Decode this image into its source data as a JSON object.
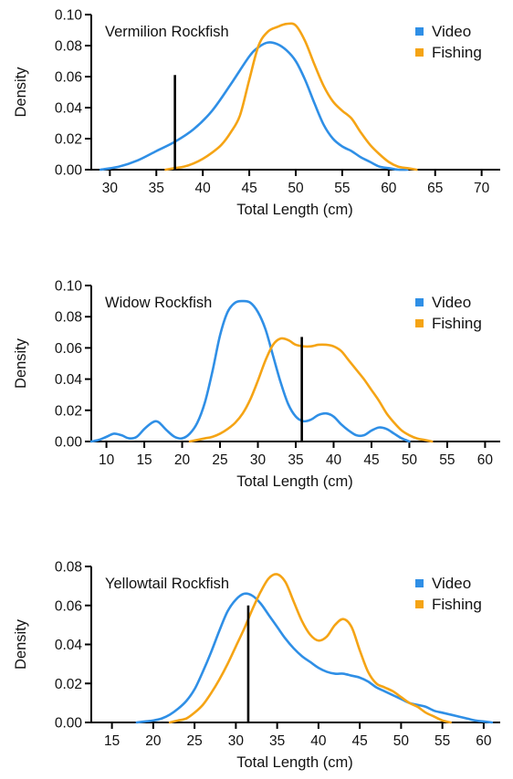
{
  "colors": {
    "video": "#2f8fe6",
    "fishing": "#f5a415",
    "marker": "#000000",
    "axis": "#000000"
  },
  "chart_data": [
    {
      "type": "line",
      "title": "Vermilion Rockfish",
      "xlabel": "Total Length (cm)",
      "ylabel": "Density",
      "xlim": [
        28,
        72
      ],
      "ylim": [
        0,
        0.1
      ],
      "xticks": [
        30,
        35,
        40,
        45,
        50,
        55,
        60,
        65,
        70
      ],
      "xtick_labels": [
        "30",
        "35",
        "40",
        "45",
        "50",
        "55",
        "60",
        "65",
        "70"
      ],
      "yticks": [
        0,
        0.02,
        0.04,
        0.06,
        0.08,
        0.1
      ],
      "ytick_labels": [
        "0.00",
        "0.02",
        "0.04",
        "0.06",
        "0.08",
        "0.10"
      ],
      "legend_position": "top-right",
      "marker_line": {
        "x": 37,
        "y": 0.061
      },
      "series": [
        {
          "name": "Video",
          "color": "#2f8fe6",
          "x": [
            29,
            31,
            33,
            35,
            37,
            39,
            41,
            43,
            45,
            46,
            47,
            48,
            49,
            50,
            51,
            52,
            53,
            54,
            55,
            56,
            57,
            58,
            59,
            60,
            61,
            62
          ],
          "y": [
            0,
            0.002,
            0.006,
            0.012,
            0.018,
            0.026,
            0.038,
            0.055,
            0.073,
            0.079,
            0.082,
            0.081,
            0.077,
            0.07,
            0.058,
            0.043,
            0.029,
            0.02,
            0.015,
            0.012,
            0.008,
            0.005,
            0.002,
            0.001,
            0,
            0
          ]
        },
        {
          "name": "Fishing",
          "color": "#f5a415",
          "x": [
            36,
            37,
            38,
            39,
            40,
            41,
            42,
            43,
            44,
            45,
            46,
            47,
            48,
            49,
            50,
            51,
            52,
            53,
            54,
            55,
            56,
            57,
            58,
            59,
            60,
            61,
            62,
            63
          ],
          "y": [
            0,
            0.001,
            0.002,
            0.004,
            0.007,
            0.011,
            0.016,
            0.024,
            0.035,
            0.058,
            0.08,
            0.089,
            0.092,
            0.094,
            0.093,
            0.083,
            0.068,
            0.054,
            0.044,
            0.038,
            0.033,
            0.024,
            0.016,
            0.01,
            0.005,
            0.002,
            0.001,
            0
          ]
        }
      ]
    },
    {
      "type": "line",
      "title": "Widow Rockfish",
      "xlabel": "Total Length (cm)",
      "ylabel": "Density",
      "xlim": [
        8,
        62
      ],
      "ylim": [
        0,
        0.1
      ],
      "xticks": [
        10,
        15,
        20,
        25,
        30,
        35,
        40,
        45,
        50,
        55,
        60
      ],
      "xtick_labels": [
        "10",
        "15",
        "20",
        "25",
        "30",
        "35",
        "40",
        "45",
        "50",
        "55",
        "60"
      ],
      "yticks": [
        0,
        0.02,
        0.04,
        0.06,
        0.08,
        0.1
      ],
      "ytick_labels": [
        "0.00",
        "0.02",
        "0.04",
        "0.06",
        "0.08",
        "0.10"
      ],
      "legend_position": "top-right",
      "marker_line": {
        "x": 35.8,
        "y": 0.067
      },
      "series": [
        {
          "name": "Video",
          "color": "#2f8fe6",
          "x": [
            8,
            9,
            10,
            11,
            12,
            13,
            14,
            15,
            16,
            16.5,
            17,
            18,
            19,
            20,
            21,
            22,
            23,
            24,
            25,
            26,
            27,
            28,
            29,
            30,
            31,
            32,
            33,
            34,
            35,
            36,
            37,
            38,
            39,
            40,
            41,
            42,
            43,
            44,
            45,
            46,
            47,
            48,
            49,
            50
          ],
          "y": [
            0,
            0.001,
            0.003,
            0.005,
            0.004,
            0.002,
            0.003,
            0.008,
            0.012,
            0.013,
            0.012,
            0.007,
            0.003,
            0.002,
            0.005,
            0.012,
            0.025,
            0.045,
            0.068,
            0.083,
            0.089,
            0.09,
            0.089,
            0.083,
            0.072,
            0.055,
            0.038,
            0.024,
            0.016,
            0.013,
            0.014,
            0.017,
            0.018,
            0.016,
            0.011,
            0.007,
            0.004,
            0.004,
            0.007,
            0.009,
            0.008,
            0.005,
            0.002,
            0
          ]
        },
        {
          "name": "Fishing",
          "color": "#f5a415",
          "x": [
            21,
            22,
            23,
            24,
            25,
            26,
            27,
            28,
            29,
            30,
            31,
            32,
            33,
            34,
            35,
            36,
            37,
            38,
            39,
            40,
            41,
            42,
            43,
            44,
            45,
            46,
            47,
            48,
            49,
            50,
            51,
            52,
            53
          ],
          "y": [
            0,
            0.001,
            0.002,
            0.003,
            0.005,
            0.008,
            0.012,
            0.018,
            0.027,
            0.039,
            0.052,
            0.062,
            0.066,
            0.065,
            0.062,
            0.061,
            0.061,
            0.062,
            0.062,
            0.061,
            0.058,
            0.052,
            0.046,
            0.04,
            0.033,
            0.026,
            0.018,
            0.012,
            0.007,
            0.004,
            0.002,
            0.001,
            0
          ]
        }
      ]
    },
    {
      "type": "line",
      "title": "Yellowtail Rockfish",
      "xlabel": "Total Length (cm)",
      "ylabel": "Density",
      "xlim": [
        12.5,
        62
      ],
      "ylim": [
        0,
        0.08
      ],
      "xticks": [
        15,
        20,
        25,
        30,
        35,
        40,
        45,
        50,
        55,
        60
      ],
      "xtick_labels": [
        "15",
        "20",
        "25",
        "30",
        "35",
        "40",
        "45",
        "50",
        "55",
        "60"
      ],
      "yticks": [
        0,
        0.02,
        0.04,
        0.06,
        0.08
      ],
      "ytick_labels": [
        "0.00",
        "0.02",
        "0.04",
        "0.06",
        "0.08"
      ],
      "legend_position": "top-right",
      "marker_line": {
        "x": 31.5,
        "y": 0.06
      },
      "series": [
        {
          "name": "Video",
          "color": "#2f8fe6",
          "x": [
            18,
            19,
            20,
            21,
            22,
            23,
            24,
            25,
            26,
            27,
            28,
            29,
            30,
            31,
            32,
            33,
            34,
            35,
            36,
            37,
            38,
            39,
            40,
            41,
            42,
            43,
            44,
            45,
            46,
            47,
            48,
            49,
            50,
            51,
            52,
            53,
            54,
            55,
            56,
            57,
            58,
            59,
            60,
            61
          ],
          "y": [
            0,
            0.0005,
            0.001,
            0.002,
            0.004,
            0.007,
            0.011,
            0.017,
            0.026,
            0.036,
            0.047,
            0.057,
            0.063,
            0.066,
            0.065,
            0.061,
            0.055,
            0.049,
            0.043,
            0.038,
            0.034,
            0.031,
            0.028,
            0.026,
            0.025,
            0.025,
            0.024,
            0.023,
            0.021,
            0.018,
            0.016,
            0.014,
            0.012,
            0.01,
            0.009,
            0.008,
            0.006,
            0.005,
            0.004,
            0.003,
            0.002,
            0.001,
            0.0005,
            0
          ]
        },
        {
          "name": "Fishing",
          "color": "#f5a415",
          "x": [
            22,
            23,
            24,
            25,
            26,
            27,
            28,
            29,
            30,
            31,
            32,
            33,
            34,
            35,
            36,
            37,
            38,
            39,
            40,
            41,
            42,
            43,
            44,
            45,
            46,
            47,
            48,
            49,
            50,
            51,
            52,
            53,
            54,
            55,
            56
          ],
          "y": [
            0,
            0.001,
            0.002,
            0.005,
            0.009,
            0.015,
            0.022,
            0.03,
            0.039,
            0.048,
            0.058,
            0.067,
            0.074,
            0.076,
            0.072,
            0.062,
            0.052,
            0.045,
            0.042,
            0.044,
            0.05,
            0.053,
            0.049,
            0.037,
            0.026,
            0.02,
            0.018,
            0.016,
            0.013,
            0.01,
            0.008,
            0.005,
            0.003,
            0.001,
            0
          ]
        }
      ]
    }
  ]
}
